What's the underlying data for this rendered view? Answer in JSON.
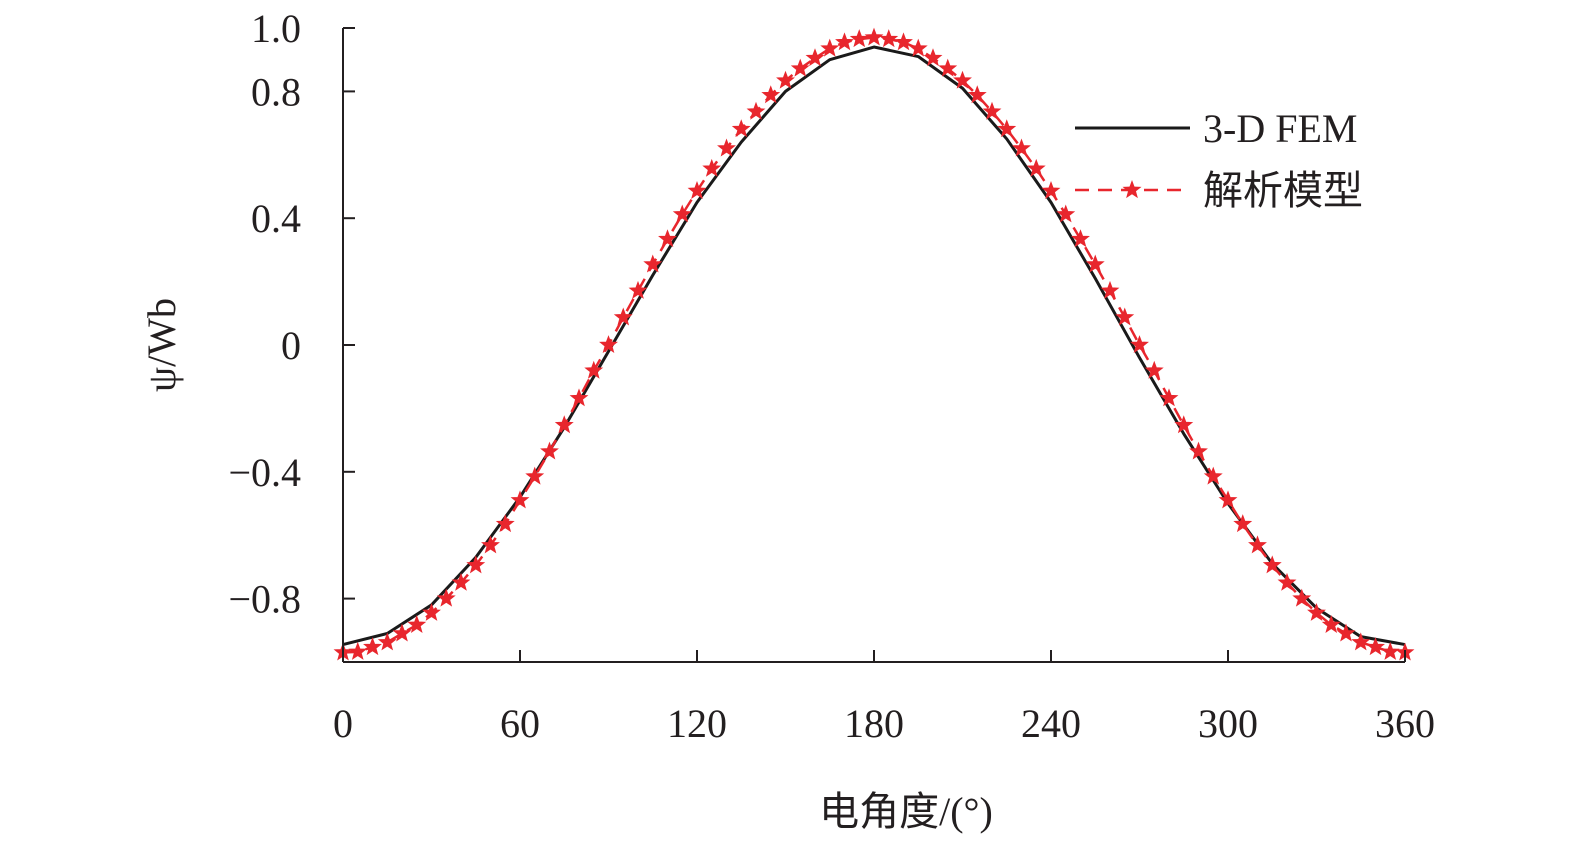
{
  "chart_data": {
    "type": "line",
    "xlabel": "电角度/(°)",
    "ylabel": "ψ/Wb",
    "xlim": [
      0,
      360
    ],
    "ylim": [
      -1.0,
      1.0
    ],
    "xticks": [
      0,
      60,
      120,
      180,
      240,
      300,
      360
    ],
    "xtick_labels": [
      "0",
      "60",
      "120",
      "180",
      "240",
      "300",
      "360"
    ],
    "yticks": [
      -0.8,
      -0.4,
      0,
      0.4,
      0.8,
      1.0
    ],
    "ytick_labels": [
      "−0.8",
      "−0.4",
      "0",
      "0.4",
      "0.8",
      "1.0"
    ],
    "grid": false,
    "legend_position": "top-right",
    "series": [
      {
        "name": "3-D FEM",
        "color": "#1a1a1a",
        "style": "solid",
        "marker": "none",
        "x": [
          0,
          15,
          30,
          45,
          60,
          75,
          90,
          105,
          120,
          135,
          150,
          165,
          180,
          195,
          210,
          225,
          240,
          255,
          270,
          285,
          300,
          315,
          330,
          345,
          360
        ],
        "values": [
          -0.945,
          -0.91,
          -0.82,
          -0.67,
          -0.48,
          -0.26,
          -0.02,
          0.22,
          0.45,
          0.64,
          0.8,
          0.9,
          0.94,
          0.91,
          0.81,
          0.65,
          0.45,
          0.21,
          -0.04,
          -0.28,
          -0.5,
          -0.69,
          -0.83,
          -0.92,
          -0.945
        ]
      },
      {
        "name": "解析模型",
        "color": "#e8262d",
        "style": "dashed",
        "marker": "star",
        "x": [
          0,
          5,
          10,
          15,
          20,
          25,
          30,
          35,
          40,
          45,
          50,
          55,
          60,
          65,
          70,
          75,
          80,
          85,
          90,
          95,
          100,
          105,
          110,
          115,
          120,
          125,
          130,
          135,
          140,
          145,
          150,
          155,
          160,
          165,
          170,
          175,
          180,
          185,
          190,
          195,
          200,
          205,
          210,
          215,
          220,
          225,
          230,
          235,
          240,
          245,
          250,
          255,
          260,
          265,
          270,
          275,
          280,
          285,
          290,
          295,
          300,
          305,
          310,
          315,
          320,
          325,
          330,
          335,
          340,
          345,
          350,
          355,
          360
        ],
        "values": [
          -0.97,
          -0.968,
          -0.953,
          -0.938,
          -0.91,
          -0.883,
          -0.845,
          -0.8,
          -0.75,
          -0.695,
          -0.632,
          -0.565,
          -0.49,
          -0.415,
          -0.336,
          -0.253,
          -0.168,
          -0.081,
          0.0,
          0.087,
          0.171,
          0.254,
          0.334,
          0.412,
          0.486,
          0.556,
          0.62,
          0.681,
          0.736,
          0.788,
          0.834,
          0.872,
          0.905,
          0.935,
          0.955,
          0.965,
          0.97,
          0.965,
          0.955,
          0.935,
          0.905,
          0.872,
          0.834,
          0.788,
          0.736,
          0.681,
          0.62,
          0.556,
          0.486,
          0.412,
          0.334,
          0.254,
          0.171,
          0.087,
          0.0,
          -0.081,
          -0.168,
          -0.253,
          -0.336,
          -0.415,
          -0.49,
          -0.565,
          -0.632,
          -0.695,
          -0.75,
          -0.8,
          -0.845,
          -0.883,
          -0.91,
          -0.938,
          -0.953,
          -0.968,
          -0.97
        ]
      }
    ]
  }
}
